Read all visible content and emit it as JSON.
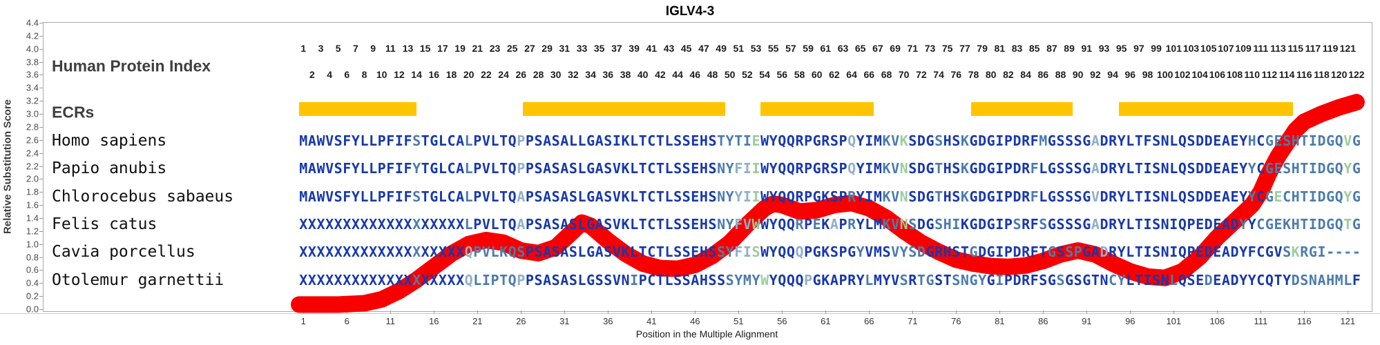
{
  "title": "IGLV4-3",
  "y_axis": {
    "label": "Relative Substitution Score",
    "tick_labels": [
      "0.0",
      "0.2",
      "0.4",
      "0.6",
      "0.8",
      "1.0",
      "1.2",
      "1.4",
      "1.6",
      "1.8",
      "2.0",
      "2.2",
      "2.4",
      "2.6",
      "2.8",
      "3.0",
      "3.2",
      "3.4",
      "3.6",
      "3.8",
      "4.0",
      "4.2",
      "4.4"
    ],
    "min": 0.0,
    "max": 4.4
  },
  "x_axis": {
    "label": "Position in the Multiple Alignment",
    "ticks": [
      1,
      6,
      11,
      16,
      21,
      26,
      31,
      36,
      41,
      46,
      51,
      56,
      61,
      66,
      71,
      76,
      81,
      86,
      91,
      96,
      101,
      106,
      111,
      116,
      121
    ]
  },
  "header": {
    "human_protein_index_label": "Human Protein Index",
    "odd_numbers": [
      1,
      3,
      5,
      7,
      9,
      11,
      13,
      15,
      17,
      19,
      21,
      23,
      25,
      27,
      29,
      31,
      33,
      35,
      37,
      39,
      41,
      43,
      45,
      47,
      49,
      51,
      53,
      55,
      57,
      59,
      61,
      63,
      65,
      67,
      69,
      71,
      73,
      75,
      77,
      79,
      81,
      83,
      85,
      87,
      89,
      91,
      93,
      95,
      97,
      99,
      101,
      103,
      105,
      107,
      109,
      111,
      113,
      115,
      117,
      119,
      121
    ],
    "even_numbers": [
      2,
      4,
      6,
      8,
      10,
      12,
      14,
      16,
      18,
      20,
      22,
      24,
      26,
      28,
      30,
      32,
      34,
      36,
      38,
      40,
      42,
      44,
      46,
      48,
      50,
      52,
      54,
      56,
      58,
      60,
      62,
      64,
      66,
      68,
      70,
      72,
      74,
      76,
      78,
      80,
      82,
      84,
      86,
      88,
      90,
      92,
      94,
      96,
      98,
      100,
      102,
      104,
      106,
      108,
      110,
      112,
      114,
      116,
      118,
      120,
      122
    ]
  },
  "ecrs": {
    "label": "ECRs",
    "bar_color": "#FFC400",
    "bars": [
      {
        "start_col": 1.0,
        "end_col": 13.5
      },
      {
        "start_col": 26.7,
        "end_col": 49.0
      },
      {
        "start_col": 54.0,
        "end_col": 66.0
      },
      {
        "start_col": 78.2,
        "end_col": 88.9
      },
      {
        "start_col": 95.2,
        "end_col": 114.2
      }
    ]
  },
  "alignment": {
    "num_cols": 122,
    "residue_colors": {
      "d": "#1838AC",
      "m": "#4C7BAE",
      "l": "#90AFC9",
      "g": "#9CCD9C"
    },
    "rows": [
      {
        "species": "Homo sapiens",
        "seq": "MAWVSFYLLPFIFSTGLCALPVLTQPPSASALLGASIKLTCTLSSEHSTYTIEWYQQRPGRSPQYIMKVKSDGSHSKGDGIPDRFMGSSSGADRYLTFSNLQSDDEAEYHCGESHTIDGQVG",
        "mask": "dddddddddddddmdddddmdddddlddddddddddddddddddddddmmmmgddddddddddldddmmgdddmddmddddddddmdddddldddddddddddddddddmdmmmmmmmmmgm"
      },
      {
        "species": "Papio anubis",
        "seq": "MAWVSFYLLPFIFYTGLCALPVLTQPPSASASLGASVKLTCTLSSEHSNYFIIWYQQRPGRSPQYIMKVNSDGTHSKGDGIPDRFLGSSSGADRYLTISNLQSDDEAEYYCGESHTIDGQYG",
        "mask": "dddddddddddddmdddddmdddddlddddddddddddddddddddddmmllgddddddddddldddmmgdddmddmdddddddmddddddldddddddddddddddddmdmmmmmmmmmgm"
      },
      {
        "species": "Chlorocebus sabaeus",
        "seq": "MAWVSFYLLPFIFSTGLCALPVLTQAPSASASLGASVKLTCTLSSEHSNYYIIWYQQRPGKSPRYIMKVNSDGTHSKGDGIPDRFLGSSSGVDRYLTISNLQSDDEAEYYCGECHTIDGQYG",
        "mask": "dddddddddddddmdddddmdddddlddddddddddddddddddddddmmllgddddddddddmdddmmgdddmddmdddddddmddddddldddddddddddddddddmdmgmmmmmmmgm"
      },
      {
        "species": "Felis catus",
        "seq": "XXXXXXXXXXXXXXXXXXXLPVLTQAPSASASLGASVKLTCTLSSEHSNYFVWWYQQRPEKAPRYLMKVNSDGSHIKGDGIPSRFSGSSSGADRYLTISNIQPEDEADYYCGEKHTIDGQTG",
        "mask": "dddddddddddddmdddddmdddddlddddddddddddddddddddddmmllgddddmdmdldmdddmmgmddmmmddddddmddmdddddlddddddddddddddddmdmmmmmmmmmmgm"
      },
      {
        "species": "Cavia porcellus",
        "seq": "XXXXXXXXXXXXXXXXXXXQPVLKQSPSASASLGASVKLTCTLSSEHSSYFISWYQQQPGKSPGYVMSVYSDGRHSTGDGIPDRFTGSSPGADRYLTISNIQPEDEADYFCGVSKRGI----",
        "mask": "dddddddddddddmdddddlmmmmmmddddddddddddddddddddd,mmllgddddlddddddmdddmmmmdddddmddddddddmdmmddlddddddddddddddddddddmgmmmmmmmm"
      },
      {
        "species": "Otolemur garnettii",
        "seq": "XXXXXXXXXXXXXXXXXXXQLIPTQPPSASASLGSSVNIPCTLSSAHSSSYMYWYQQQPGKAPRYLMYVSRTGSTSNGYGIPDRFSGSGSGTNCYLTISNLQSEDEADYYCQTYDSNAHMLF",
        "mask": "dddddddddddddmdddddlmmmmmlddddddddddddmddddddddddmmmmgddddlddddddmdddmdmmddmmmmdmddddddmdddddmmdddddmdddmdddddddddmmmmmmmdgm"
      }
    ]
  },
  "chart_data": {
    "type": "line",
    "title": "IGLV4-3",
    "xlabel": "Position in the Multiple Alignment",
    "ylabel": "Relative Substitution Score",
    "ylim": [
      0.0,
      4.4
    ],
    "xlim": [
      1,
      122
    ],
    "grid": false,
    "legend": "none",
    "series_name": "relative substitution score",
    "line_color": "#F80000",
    "line_thickness_px": 24,
    "points": [
      [
        0.5,
        0.07
      ],
      [
        5,
        0.07
      ],
      [
        8,
        0.09
      ],
      [
        10,
        0.15
      ],
      [
        12,
        0.28
      ],
      [
        14,
        0.45
      ],
      [
        16,
        0.65
      ],
      [
        18,
        0.85
      ],
      [
        20,
        1.0
      ],
      [
        22,
        1.06
      ],
      [
        24,
        1.02
      ],
      [
        26,
        0.9
      ],
      [
        28,
        0.86
      ],
      [
        30,
        0.95
      ],
      [
        32,
        1.2
      ],
      [
        33,
        1.33
      ],
      [
        34,
        1.28
      ],
      [
        36,
        1.05
      ],
      [
        38,
        0.85
      ],
      [
        40,
        0.7
      ],
      [
        42,
        0.63
      ],
      [
        44,
        0.62
      ],
      [
        46,
        0.68
      ],
      [
        48,
        0.82
      ],
      [
        50,
        1.02
      ],
      [
        52,
        1.3
      ],
      [
        54,
        1.55
      ],
      [
        55,
        1.62
      ],
      [
        56,
        1.6
      ],
      [
        58,
        1.5
      ],
      [
        60,
        1.52
      ],
      [
        62,
        1.6
      ],
      [
        64,
        1.63
      ],
      [
        66,
        1.55
      ],
      [
        68,
        1.4
      ],
      [
        70,
        1.2
      ],
      [
        72,
        1.02
      ],
      [
        74,
        0.88
      ],
      [
        76,
        0.76
      ],
      [
        78,
        0.7
      ],
      [
        80,
        0.66
      ],
      [
        82,
        0.65
      ],
      [
        84,
        0.67
      ],
      [
        86,
        0.74
      ],
      [
        88,
        0.84
      ],
      [
        90,
        0.9
      ],
      [
        92,
        0.84
      ],
      [
        94,
        0.7
      ],
      [
        96,
        0.58
      ],
      [
        98,
        0.5
      ],
      [
        100,
        0.48
      ],
      [
        102,
        0.58
      ],
      [
        104,
        0.8
      ],
      [
        106,
        1.1
      ],
      [
        108,
        1.35
      ],
      [
        110,
        1.6
      ],
      [
        111,
        1.8
      ],
      [
        112,
        2.1
      ],
      [
        113,
        2.35
      ],
      [
        114,
        2.55
      ],
      [
        115,
        2.75
      ],
      [
        116,
        2.88
      ],
      [
        118,
        3.0
      ],
      [
        120,
        3.1
      ],
      [
        122,
        3.18
      ]
    ]
  }
}
